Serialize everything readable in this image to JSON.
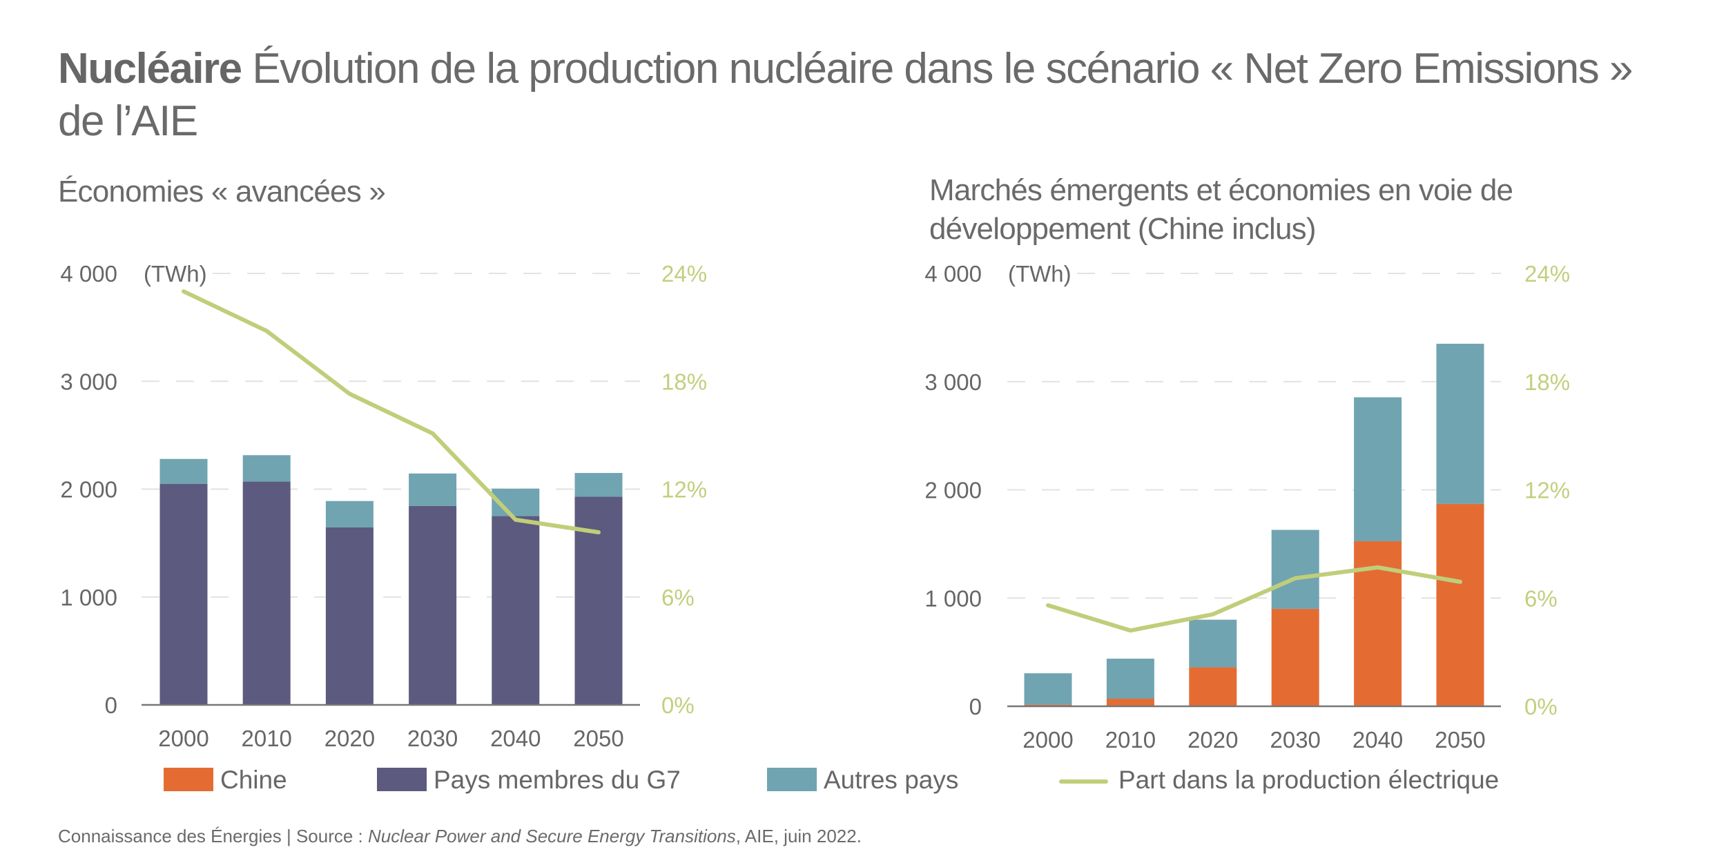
{
  "header": {
    "title_bold": "Nucléaire",
    "title_rest": "Évolution de la production nucléaire dans le scénario « Net Zero Emissions »",
    "title_line2": "de l’AIE"
  },
  "colors": {
    "chine": "#e46c33",
    "g7": "#5c5a7e",
    "autres": "#70a4b1",
    "share_line": "#c0ce7a",
    "text": "#666666",
    "grid": "#e2e2e2",
    "axis": "#777777"
  },
  "legend": {
    "items": [
      {
        "key": "chine",
        "label": "Chine",
        "type": "box"
      },
      {
        "key": "g7",
        "label": "Pays membres du G7",
        "type": "box"
      },
      {
        "key": "autres",
        "label": "Autres pays",
        "type": "box"
      },
      {
        "key": "share_line",
        "label": "Part dans la production électrique",
        "type": "line"
      }
    ]
  },
  "source": {
    "prefix": "Connaissance des Énergies | Source : ",
    "italic": "Nuclear Power and Secure Energy Transitions",
    "suffix": ", AIE, juin 2022."
  },
  "chart_data": [
    {
      "type": "bar",
      "stacked": true,
      "title": "Économies « avancées »",
      "unit_label": "(TWh)",
      "categories": [
        "2000",
        "2010",
        "2020",
        "2030",
        "2040",
        "2050"
      ],
      "ylim": [
        0,
        4000
      ],
      "yticks": [
        0,
        1000,
        2000,
        3000,
        4000
      ],
      "ytick_labels": [
        "0",
        "1 000",
        "2 000",
        "3 000",
        "4 000"
      ],
      "y2lim": [
        0,
        24
      ],
      "y2ticks": [
        0,
        6,
        12,
        18,
        24
      ],
      "y2tick_labels": [
        "0%",
        "6%",
        "12%",
        "18%",
        "24%"
      ],
      "grid": true,
      "series": [
        {
          "name": "Pays membres du G7",
          "key": "g7",
          "values": [
            2050,
            2070,
            1645,
            1845,
            1750,
            1930
          ]
        },
        {
          "name": "Autres pays",
          "key": "autres",
          "values": [
            230,
            245,
            245,
            300,
            255,
            220
          ]
        }
      ],
      "line_series": {
        "name": "Part dans la production électrique",
        "key": "share_line",
        "axis": "right",
        "values": [
          23.0,
          20.8,
          17.3,
          15.1,
          10.3,
          9.6
        ]
      }
    },
    {
      "type": "bar",
      "stacked": true,
      "title": "Marchés émergents et économies en voie de développement (Chine inclus)",
      "unit_label": "(TWh)",
      "categories": [
        "2000",
        "2010",
        "2020",
        "2030",
        "2040",
        "2050"
      ],
      "ylim": [
        0,
        4000
      ],
      "yticks": [
        0,
        1000,
        2000,
        3000,
        4000
      ],
      "ytick_labels": [
        "0",
        "1 000",
        "2 000",
        "3 000",
        "4 000"
      ],
      "y2lim": [
        0,
        24
      ],
      "y2ticks": [
        0,
        6,
        12,
        18,
        24
      ],
      "y2tick_labels": [
        "0%",
        "6%",
        "12%",
        "18%",
        "24%"
      ],
      "grid": true,
      "series": [
        {
          "name": "Chine",
          "key": "chine",
          "values": [
            15,
            70,
            360,
            900,
            1525,
            1870
          ]
        },
        {
          "name": "Autres pays",
          "key": "autres",
          "values": [
            290,
            370,
            440,
            730,
            1330,
            1480
          ]
        }
      ],
      "line_series": {
        "name": "Part dans la production électrique",
        "key": "share_line",
        "axis": "right",
        "values": [
          5.6,
          4.2,
          5.1,
          7.1,
          7.7,
          6.9
        ]
      }
    }
  ]
}
